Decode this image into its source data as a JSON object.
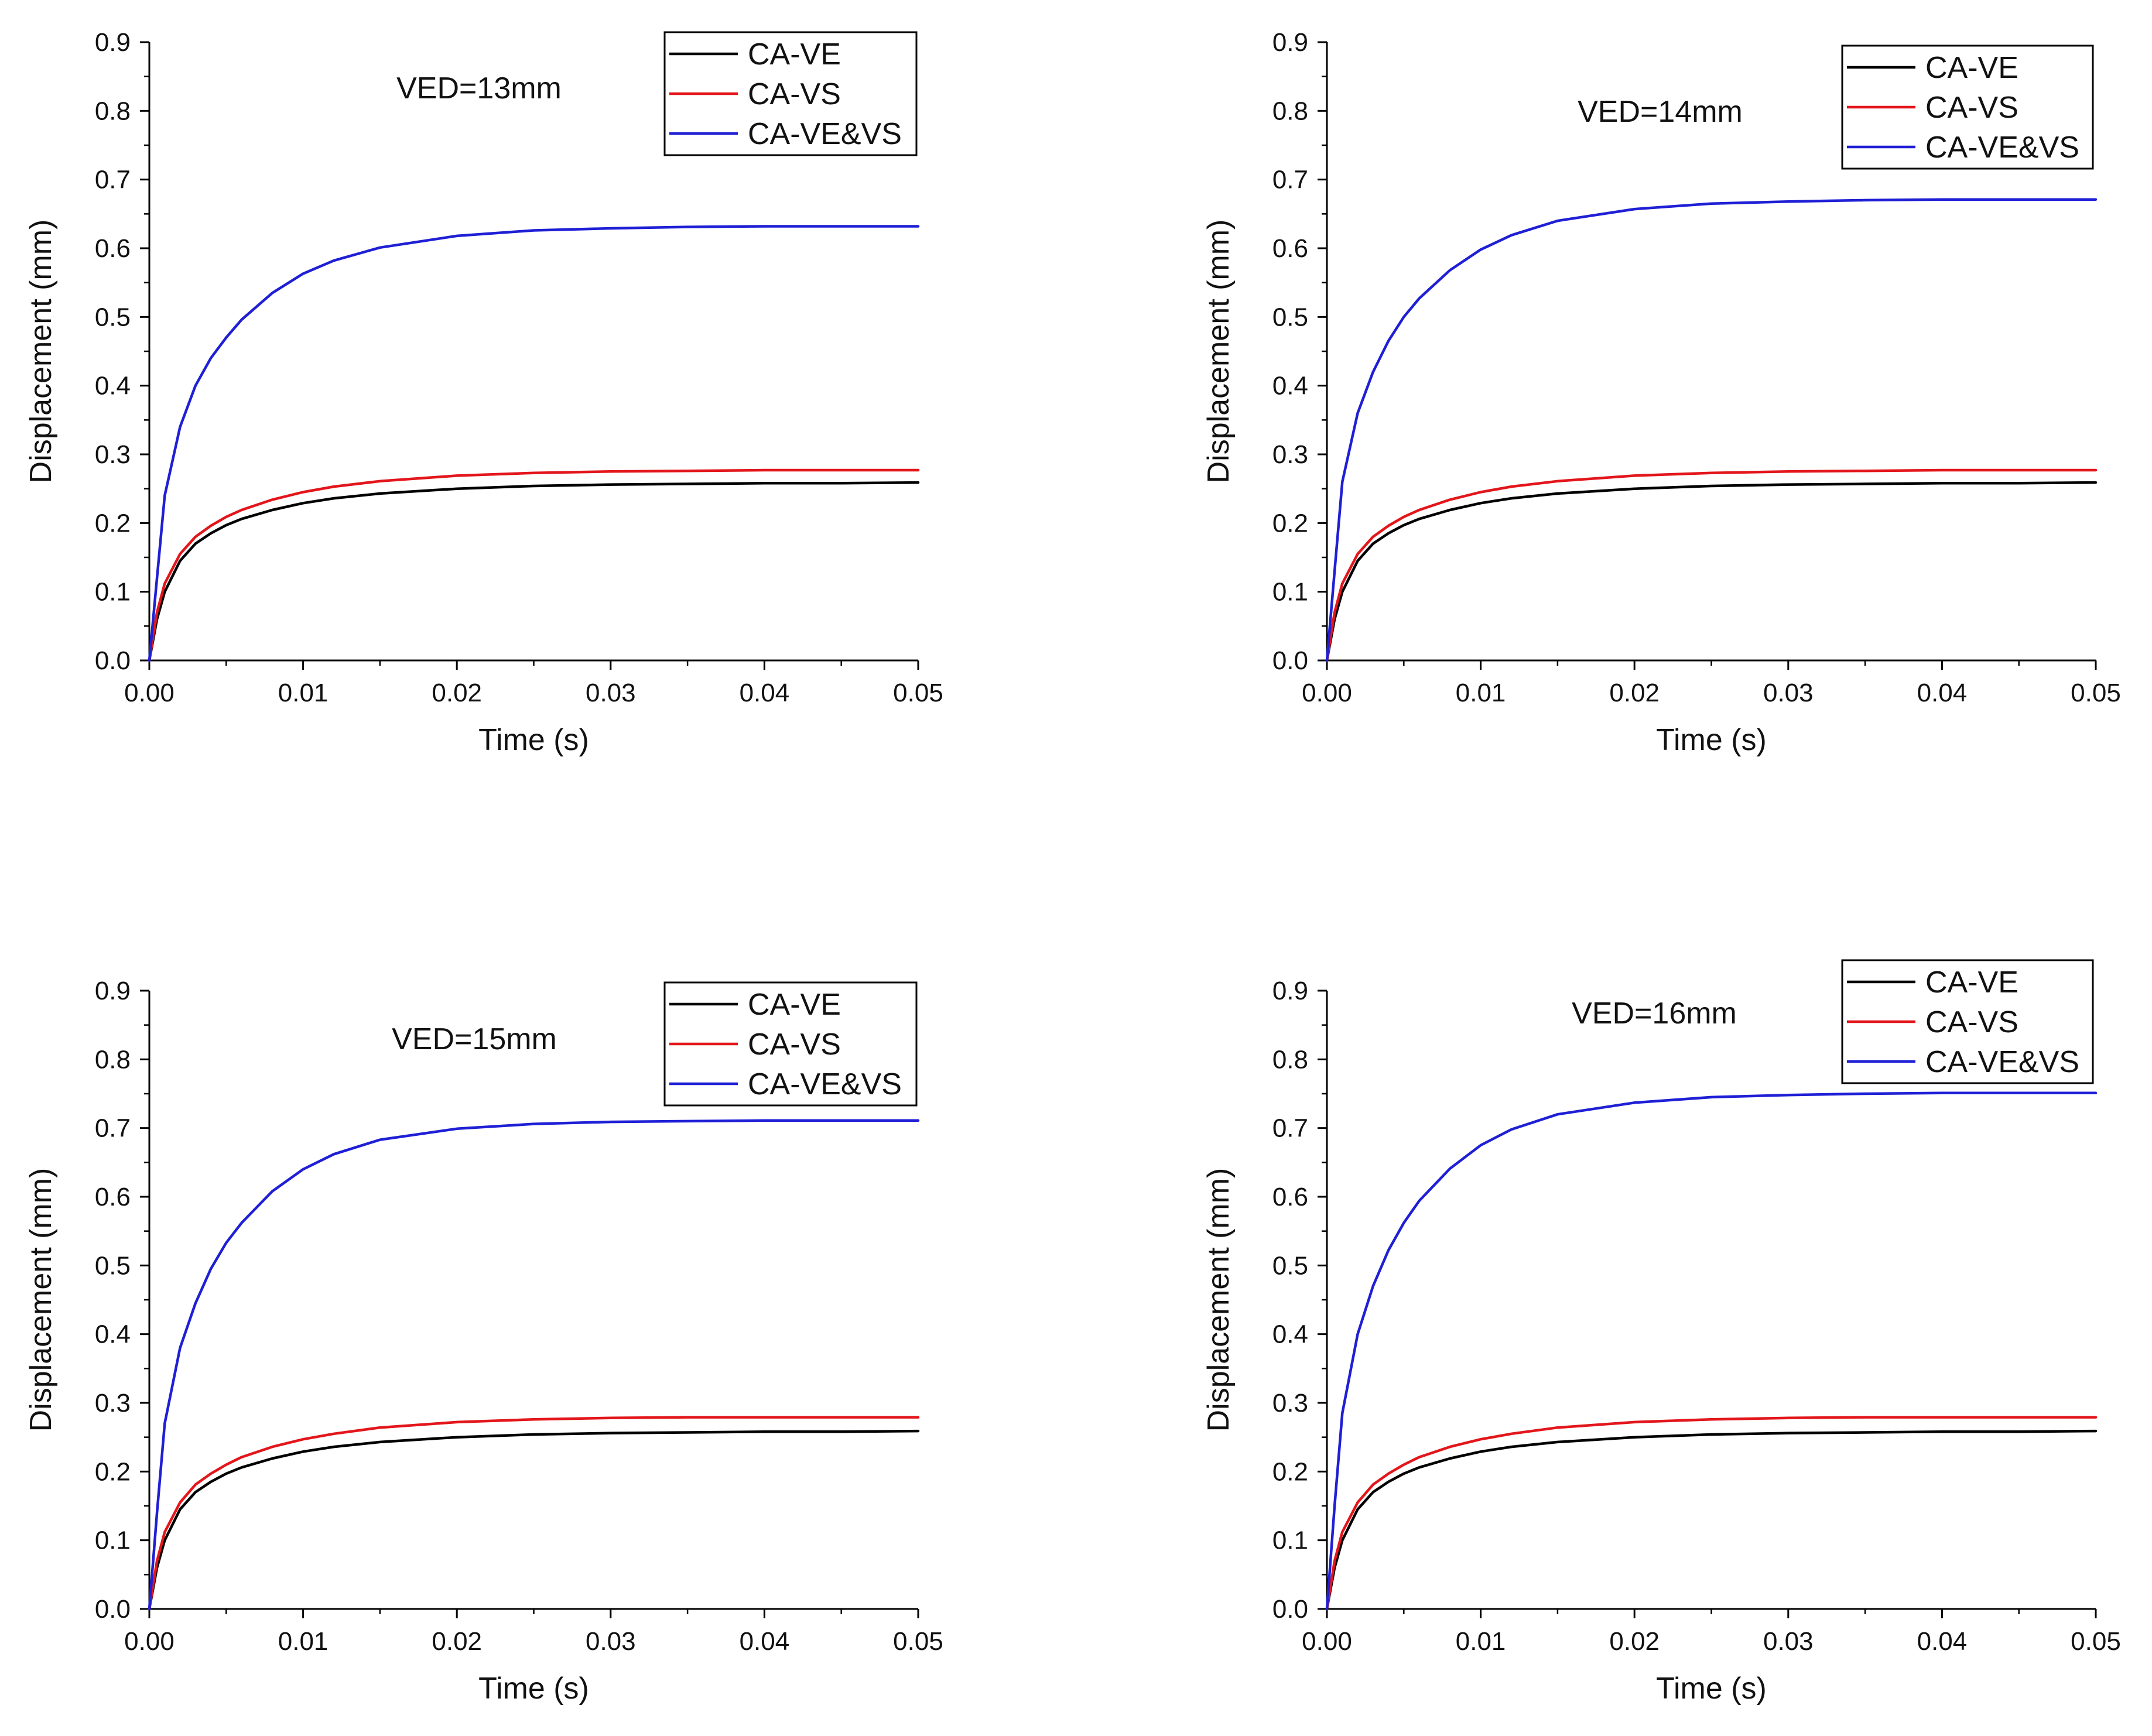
{
  "colors": {
    "ca_ve": "#000000",
    "ca_vs": "#e3161b",
    "ca_ve_vs": "#1f1fd6"
  },
  "chart_data": [
    {
      "type": "line",
      "annotation": "VED=13mm",
      "xlabel": "Time (s)",
      "ylabel": "Displacement (mm)",
      "xlim": [
        0,
        0.05
      ],
      "ylim": [
        0,
        0.9
      ],
      "x_ticks": [
        "0.00",
        "0.01",
        "0.02",
        "0.03",
        "0.04",
        "0.05"
      ],
      "y_ticks": [
        "0.0",
        "0.1",
        "0.2",
        "0.3",
        "0.4",
        "0.5",
        "0.6",
        "0.7",
        "0.8",
        "0.9"
      ],
      "legend": [
        "CA-VE",
        "CA-VS",
        "CA-VE&VS"
      ],
      "legend_position": "top-right",
      "series": [
        {
          "name": "CA-VE",
          "color": "#000000",
          "x": [
            0,
            0.0005,
            0.001,
            0.002,
            0.003,
            0.004,
            0.005,
            0.006,
            0.008,
            0.01,
            0.012,
            0.015,
            0.02,
            0.025,
            0.03,
            0.035,
            0.04,
            0.045,
            0.05
          ],
          "y": [
            0,
            0.06,
            0.1,
            0.145,
            0.17,
            0.185,
            0.197,
            0.206,
            0.219,
            0.229,
            0.236,
            0.243,
            0.25,
            0.254,
            0.256,
            0.257,
            0.258,
            0.258,
            0.259
          ]
        },
        {
          "name": "CA-VS",
          "color": "#e3161b",
          "x": [
            0,
            0.0005,
            0.001,
            0.002,
            0.003,
            0.004,
            0.005,
            0.006,
            0.008,
            0.01,
            0.012,
            0.015,
            0.02,
            0.025,
            0.03,
            0.035,
            0.04,
            0.045,
            0.05
          ],
          "y": [
            0,
            0.07,
            0.112,
            0.155,
            0.18,
            0.196,
            0.209,
            0.219,
            0.234,
            0.245,
            0.253,
            0.261,
            0.269,
            0.273,
            0.275,
            0.276,
            0.277,
            0.277,
            0.277
          ]
        },
        {
          "name": "CA-VE&VS",
          "color": "#1f1fd6",
          "x": [
            0,
            0.0005,
            0.001,
            0.002,
            0.003,
            0.004,
            0.005,
            0.006,
            0.008,
            0.01,
            0.012,
            0.015,
            0.02,
            0.025,
            0.03,
            0.035,
            0.04,
            0.045,
            0.05
          ],
          "y": [
            0,
            0.12,
            0.24,
            0.34,
            0.4,
            0.44,
            0.47,
            0.496,
            0.535,
            0.563,
            0.582,
            0.601,
            0.618,
            0.626,
            0.629,
            0.631,
            0.632,
            0.632,
            0.632
          ]
        }
      ]
    },
    {
      "type": "line",
      "annotation": "VED=14mm",
      "xlabel": "Time (s)",
      "ylabel": "Displacement (mm)",
      "xlim": [
        0,
        0.05
      ],
      "ylim": [
        0,
        0.9
      ],
      "x_ticks": [
        "0.00",
        "0.01",
        "0.02",
        "0.03",
        "0.04",
        "0.05"
      ],
      "y_ticks": [
        "0.0",
        "0.1",
        "0.2",
        "0.3",
        "0.4",
        "0.5",
        "0.6",
        "0.7",
        "0.8",
        "0.9"
      ],
      "legend": [
        "CA-VE",
        "CA-VS",
        "CA-VE&VS"
      ],
      "legend_position": "top-right",
      "series": [
        {
          "name": "CA-VE",
          "color": "#000000",
          "x": [
            0,
            0.0005,
            0.001,
            0.002,
            0.003,
            0.004,
            0.005,
            0.006,
            0.008,
            0.01,
            0.012,
            0.015,
            0.02,
            0.025,
            0.03,
            0.035,
            0.04,
            0.045,
            0.05
          ],
          "y": [
            0,
            0.06,
            0.1,
            0.145,
            0.17,
            0.185,
            0.197,
            0.206,
            0.219,
            0.229,
            0.236,
            0.243,
            0.25,
            0.254,
            0.256,
            0.257,
            0.258,
            0.258,
            0.259
          ]
        },
        {
          "name": "CA-VS",
          "color": "#e3161b",
          "x": [
            0,
            0.0005,
            0.001,
            0.002,
            0.003,
            0.004,
            0.005,
            0.006,
            0.008,
            0.01,
            0.012,
            0.015,
            0.02,
            0.025,
            0.03,
            0.035,
            0.04,
            0.045,
            0.05
          ],
          "y": [
            0,
            0.07,
            0.112,
            0.155,
            0.18,
            0.196,
            0.209,
            0.219,
            0.234,
            0.245,
            0.253,
            0.261,
            0.269,
            0.273,
            0.275,
            0.276,
            0.277,
            0.277,
            0.277
          ]
        },
        {
          "name": "CA-VE&VS",
          "color": "#1f1fd6",
          "x": [
            0,
            0.0005,
            0.001,
            0.002,
            0.003,
            0.004,
            0.005,
            0.006,
            0.008,
            0.01,
            0.012,
            0.015,
            0.02,
            0.025,
            0.03,
            0.035,
            0.04,
            0.045,
            0.05
          ],
          "y": [
            0,
            0.13,
            0.26,
            0.36,
            0.42,
            0.465,
            0.5,
            0.527,
            0.568,
            0.598,
            0.619,
            0.64,
            0.657,
            0.665,
            0.668,
            0.67,
            0.671,
            0.671,
            0.671
          ]
        }
      ]
    },
    {
      "type": "line",
      "annotation": "VED=15mm",
      "xlabel": "Time (s)",
      "ylabel": "Displacement (mm)",
      "xlim": [
        0,
        0.05
      ],
      "ylim": [
        0,
        0.9
      ],
      "x_ticks": [
        "0.00",
        "0.01",
        "0.02",
        "0.03",
        "0.04",
        "0.05"
      ],
      "y_ticks": [
        "0.0",
        "0.1",
        "0.2",
        "0.3",
        "0.4",
        "0.5",
        "0.6",
        "0.7",
        "0.8",
        "0.9"
      ],
      "legend": [
        "CA-VE",
        "CA-VS",
        "CA-VE&VS"
      ],
      "legend_position": "top-right",
      "series": [
        {
          "name": "CA-VE",
          "color": "#000000",
          "x": [
            0,
            0.0005,
            0.001,
            0.002,
            0.003,
            0.004,
            0.005,
            0.006,
            0.008,
            0.01,
            0.012,
            0.015,
            0.02,
            0.025,
            0.03,
            0.035,
            0.04,
            0.045,
            0.05
          ],
          "y": [
            0,
            0.06,
            0.1,
            0.145,
            0.17,
            0.185,
            0.197,
            0.206,
            0.219,
            0.229,
            0.236,
            0.243,
            0.25,
            0.254,
            0.256,
            0.257,
            0.258,
            0.258,
            0.259
          ]
        },
        {
          "name": "CA-VS",
          "color": "#e3161b",
          "x": [
            0,
            0.0005,
            0.001,
            0.002,
            0.003,
            0.004,
            0.005,
            0.006,
            0.008,
            0.01,
            0.012,
            0.015,
            0.02,
            0.025,
            0.03,
            0.035,
            0.04,
            0.045,
            0.05
          ],
          "y": [
            0,
            0.07,
            0.112,
            0.155,
            0.181,
            0.197,
            0.21,
            0.221,
            0.236,
            0.247,
            0.255,
            0.264,
            0.272,
            0.276,
            0.278,
            0.279,
            0.279,
            0.279,
            0.279
          ]
        },
        {
          "name": "CA-VE&VS",
          "color": "#1f1fd6",
          "x": [
            0,
            0.0005,
            0.001,
            0.002,
            0.003,
            0.004,
            0.005,
            0.006,
            0.008,
            0.01,
            0.012,
            0.015,
            0.02,
            0.025,
            0.03,
            0.035,
            0.04,
            0.045,
            0.05
          ],
          "y": [
            0,
            0.14,
            0.27,
            0.38,
            0.445,
            0.495,
            0.533,
            0.562,
            0.608,
            0.64,
            0.662,
            0.683,
            0.699,
            0.706,
            0.709,
            0.71,
            0.711,
            0.711,
            0.711
          ]
        }
      ]
    },
    {
      "type": "line",
      "annotation": "VED=16mm",
      "xlabel": "Time (s)",
      "ylabel": "Displacement (mm)",
      "xlim": [
        0,
        0.05
      ],
      "ylim": [
        0,
        0.9
      ],
      "x_ticks": [
        "0.00",
        "0.01",
        "0.02",
        "0.03",
        "0.04",
        "0.05"
      ],
      "y_ticks": [
        "0.0",
        "0.1",
        "0.2",
        "0.3",
        "0.4",
        "0.5",
        "0.6",
        "0.7",
        "0.8",
        "0.9"
      ],
      "legend": [
        "CA-VE",
        "CA-VS",
        "CA-VE&VS"
      ],
      "legend_position": "top-right",
      "series": [
        {
          "name": "CA-VE",
          "color": "#000000",
          "x": [
            0,
            0.0005,
            0.001,
            0.002,
            0.003,
            0.004,
            0.005,
            0.006,
            0.008,
            0.01,
            0.012,
            0.015,
            0.02,
            0.025,
            0.03,
            0.035,
            0.04,
            0.045,
            0.05
          ],
          "y": [
            0,
            0.06,
            0.1,
            0.145,
            0.17,
            0.185,
            0.197,
            0.206,
            0.219,
            0.229,
            0.236,
            0.243,
            0.25,
            0.254,
            0.256,
            0.257,
            0.258,
            0.258,
            0.259
          ]
        },
        {
          "name": "CA-VS",
          "color": "#e3161b",
          "x": [
            0,
            0.0005,
            0.001,
            0.002,
            0.003,
            0.004,
            0.005,
            0.006,
            0.008,
            0.01,
            0.012,
            0.015,
            0.02,
            0.025,
            0.03,
            0.035,
            0.04,
            0.045,
            0.05
          ],
          "y": [
            0,
            0.07,
            0.112,
            0.155,
            0.181,
            0.197,
            0.21,
            0.221,
            0.236,
            0.247,
            0.255,
            0.264,
            0.272,
            0.276,
            0.278,
            0.279,
            0.279,
            0.279,
            0.279
          ]
        },
        {
          "name": "CA-VE&VS",
          "color": "#1f1fd6",
          "x": [
            0,
            0.0005,
            0.001,
            0.002,
            0.003,
            0.004,
            0.005,
            0.006,
            0.008,
            0.01,
            0.012,
            0.015,
            0.02,
            0.025,
            0.03,
            0.035,
            0.04,
            0.045,
            0.05
          ],
          "y": [
            0,
            0.15,
            0.285,
            0.4,
            0.47,
            0.522,
            0.562,
            0.594,
            0.641,
            0.675,
            0.698,
            0.72,
            0.737,
            0.745,
            0.748,
            0.75,
            0.751,
            0.751,
            0.751
          ]
        }
      ]
    }
  ]
}
